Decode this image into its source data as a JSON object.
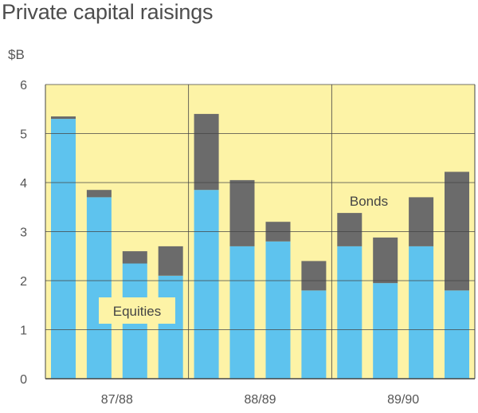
{
  "colors": {
    "plot_bg": "#fdf3a6",
    "equities": "#5ec3ee",
    "bonds": "#6b6b6b",
    "grid": "#444444",
    "label_box": "#fdf3a6"
  },
  "chart_data": {
    "type": "bar",
    "stacked": true,
    "title": "Private capital raisings",
    "unit_label": "$B",
    "ylim": [
      0,
      6
    ],
    "yticks": [
      "0",
      "1",
      "2",
      "3",
      "4",
      "5",
      "6"
    ],
    "groups": [
      "87/88",
      "88/89",
      "89/90"
    ],
    "bars_per_group": 4,
    "series": [
      {
        "name": "Equities",
        "color_key": "equities",
        "values": [
          5.3,
          3.7,
          2.35,
          2.1,
          3.85,
          2.7,
          2.8,
          1.8,
          2.7,
          1.95,
          2.7,
          1.8
        ]
      },
      {
        "name": "Bonds",
        "color_key": "bonds",
        "values": [
          0.05,
          0.15,
          0.25,
          0.6,
          1.55,
          1.35,
          0.4,
          0.6,
          0.68,
          0.93,
          1.0,
          2.42
        ]
      }
    ],
    "annotations": [
      "Equities",
      "Bonds"
    ],
    "grid": true
  }
}
